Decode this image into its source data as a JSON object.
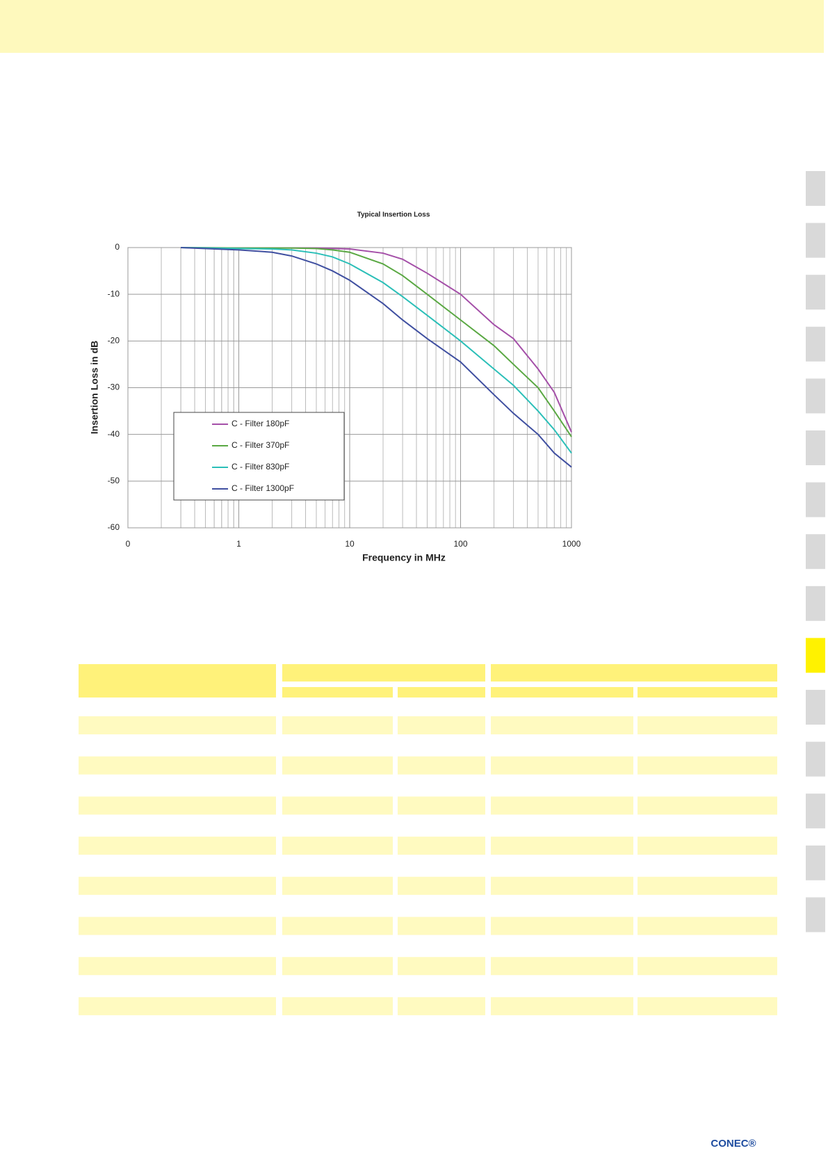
{
  "chart_data": {
    "type": "line",
    "title": "Typical Insertion Loss",
    "x_label": "Frequency in MHz",
    "y_label": "Insertion Loss in dB",
    "x": [
      0.3,
      1,
      2,
      3,
      5,
      7,
      10,
      20,
      30,
      50,
      100,
      200,
      300,
      500,
      700,
      1000
    ],
    "series": [
      {
        "name": "C - Filter 180pF",
        "color": "#a44fa8",
        "values": [
          0,
          -0.1,
          -0.1,
          -0.1,
          -0.1,
          -0.2,
          -0.3,
          -1.2,
          -2.5,
          -5.5,
          -10,
          -16.5,
          -19.5,
          -26,
          -31,
          -39.5
        ]
      },
      {
        "name": "C - Filter 370pF",
        "color": "#5aa843",
        "values": [
          0,
          -0.1,
          -0.1,
          -0.1,
          -0.2,
          -0.5,
          -1,
          -3.5,
          -6,
          -10,
          -15.5,
          -21,
          -25,
          -30,
          -35,
          -40.5
        ]
      },
      {
        "name": "C - Filter 830pF",
        "color": "#2bbfb8",
        "values": [
          0,
          -0.2,
          -0.3,
          -0.5,
          -1.2,
          -2,
          -3.5,
          -7.5,
          -10.5,
          -14.5,
          -20,
          -26,
          -29.5,
          -35,
          -39,
          -44
        ]
      },
      {
        "name": "C - Filter 1300pF",
        "color": "#3f4fa0",
        "values": [
          0,
          -0.5,
          -1,
          -1.8,
          -3.5,
          -5,
          -7,
          -12,
          -15.5,
          -19.5,
          -24.5,
          -31.5,
          -35.5,
          -40,
          -44,
          -47
        ]
      }
    ],
    "xscale": "log",
    "xlim": [
      0.1,
      1000
    ],
    "xticks": [
      {
        "value": 0.1,
        "label": "0"
      },
      1,
      10,
      100,
      1000
    ],
    "ylim": [
      -60,
      0
    ],
    "yticks": [
      -60,
      -50,
      -40,
      -30,
      -20,
      -10,
      0
    ],
    "grid": true,
    "legend": "lower left"
  },
  "footer": {
    "logo": "CONEC®"
  }
}
